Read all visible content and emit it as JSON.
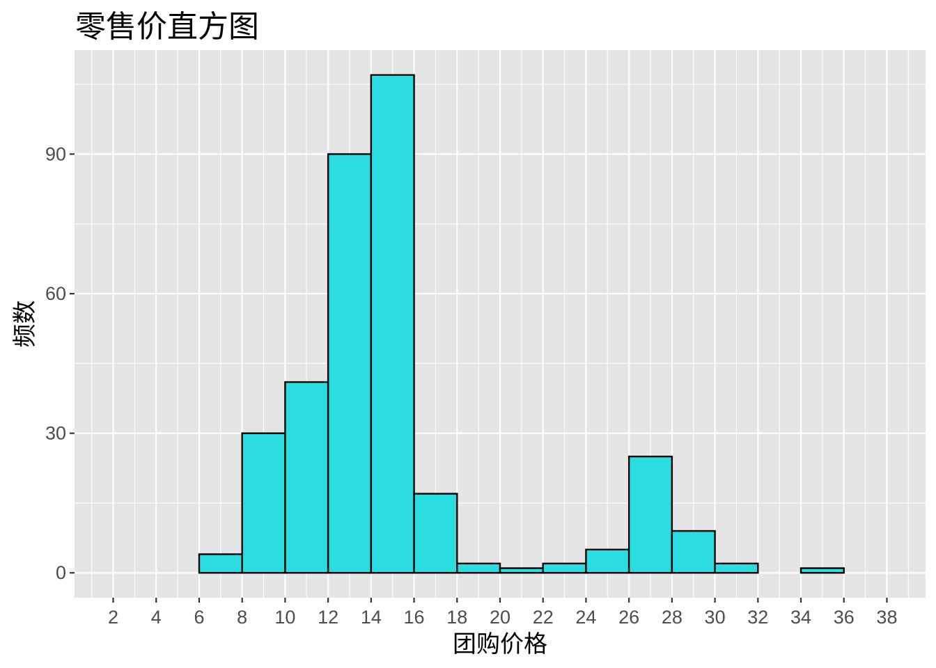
{
  "chart_data": {
    "type": "bar",
    "title": "零售价直方图",
    "xlabel": "团购价格",
    "ylabel": "频数",
    "bin_width": 2,
    "bins": [
      {
        "x0": 2,
        "x1": 4,
        "count": 0
      },
      {
        "x0": 4,
        "x1": 6,
        "count": 0
      },
      {
        "x0": 6,
        "x1": 8,
        "count": 4
      },
      {
        "x0": 8,
        "x1": 10,
        "count": 30
      },
      {
        "x0": 10,
        "x1": 12,
        "count": 41
      },
      {
        "x0": 12,
        "x1": 14,
        "count": 90
      },
      {
        "x0": 14,
        "x1": 16,
        "count": 107
      },
      {
        "x0": 16,
        "x1": 18,
        "count": 17
      },
      {
        "x0": 18,
        "x1": 20,
        "count": 2
      },
      {
        "x0": 20,
        "x1": 22,
        "count": 1
      },
      {
        "x0": 22,
        "x1": 24,
        "count": 2
      },
      {
        "x0": 24,
        "x1": 26,
        "count": 5
      },
      {
        "x0": 26,
        "x1": 28,
        "count": 25
      },
      {
        "x0": 28,
        "x1": 30,
        "count": 9
      },
      {
        "x0": 30,
        "x1": 32,
        "count": 2
      },
      {
        "x0": 32,
        "x1": 34,
        "count": 0
      },
      {
        "x0": 34,
        "x1": 36,
        "count": 1
      },
      {
        "x0": 36,
        "x1": 38,
        "count": 0
      }
    ],
    "x_ticks": [
      "2",
      "4",
      "6",
      "8",
      "10",
      "12",
      "14",
      "16",
      "18",
      "20",
      "22",
      "24",
      "26",
      "28",
      "30",
      "32",
      "34",
      "36",
      "38"
    ],
    "y_ticks": [
      "0",
      "30",
      "60",
      "90"
    ],
    "xlim": [
      0.2,
      39.8
    ],
    "ylim": [
      -5.35,
      112.35
    ],
    "fill_color": "#2ADDE0",
    "outline_color": "#000000",
    "panel_color": "#E5E5E5",
    "grid_color": "#FFFFFF",
    "grid": true,
    "legend": "none"
  }
}
